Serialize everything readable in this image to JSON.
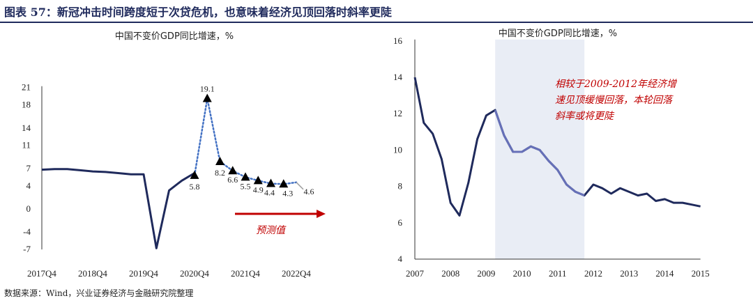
{
  "figure": {
    "title": "图表 57：新冠冲击时间跨度短于次贷危机，也意味着经济见顶回落时斜率更陡",
    "source": "数据来源：Wind，兴业证券经济与金融研究院整理"
  },
  "chart_data": [
    {
      "type": "line",
      "title": "中国不变价GDP同比增速，%",
      "x_tick_labels": [
        "2017Q4",
        "2018Q4",
        "2019Q4",
        "2020Q4",
        "2021Q4",
        "2022Q4"
      ],
      "y_tick_labels": [
        "21",
        "18",
        "14",
        "11",
        "7",
        "4",
        "0",
        "-4",
        "-7"
      ],
      "ylim": [
        -7,
        21
      ],
      "actual": {
        "x": [
          "2017Q4",
          "2018Q1",
          "2018Q2",
          "2018Q3",
          "2018Q4",
          "2019Q1",
          "2019Q2",
          "2019Q3",
          "2019Q4",
          "2020Q1",
          "2020Q2",
          "2020Q3",
          "2020Q4"
        ],
        "y": [
          6.8,
          6.9,
          6.9,
          6.7,
          6.5,
          6.4,
          6.2,
          6.0,
          6.0,
          -6.8,
          3.2,
          4.9,
          6.2
        ],
        "color": "#1f2a5c"
      },
      "forecast": {
        "x": [
          "2020Q4",
          "2021Q1",
          "2021Q2",
          "2021Q3",
          "2021Q4",
          "2022Q1",
          "2022Q2",
          "2022Q3",
          "2022Q4"
        ],
        "y": [
          5.8,
          19.1,
          8.2,
          6.6,
          5.5,
          4.9,
          4.4,
          4.3,
          4.6
        ],
        "labels": [
          "5.8",
          "19.1",
          "8.2",
          "6.6",
          "5.5",
          "4.9",
          "4.4",
          "4.3",
          "4.6"
        ],
        "color": "#4472c4"
      },
      "annotation": "预测值"
    },
    {
      "type": "line",
      "title": "中国不变价GDP同比增速，%",
      "x_tick_labels": [
        "2007",
        "2008",
        "2009",
        "2010",
        "2011",
        "2012",
        "2013",
        "2014",
        "2015"
      ],
      "y_tick_labels": [
        "16",
        "14",
        "12",
        "10",
        "8",
        "6",
        "4"
      ],
      "ylim": [
        4,
        16
      ],
      "xlim": [
        2007,
        2015
      ],
      "series": [
        {
          "x": [
            2007.0,
            2007.25,
            2007.5,
            2007.75,
            2008.0,
            2008.25,
            2008.5,
            2008.75,
            2009.0,
            2009.25,
            2009.5,
            2009.75,
            2010.0,
            2010.25,
            2010.5,
            2010.75,
            2011.0,
            2011.25,
            2011.5,
            2011.75,
            2012.0,
            2012.25,
            2012.5,
            2012.75,
            2013.0,
            2013.25,
            2013.5,
            2013.75,
            2014.0,
            2014.25,
            2014.5,
            2014.75,
            2015.0
          ],
          "y": [
            14.0,
            11.5,
            10.9,
            9.5,
            7.1,
            6.4,
            8.2,
            10.6,
            11.9,
            12.2,
            10.8,
            9.9,
            9.9,
            10.2,
            10.0,
            9.4,
            8.9,
            8.1,
            7.7,
            7.5,
            8.1,
            7.9,
            7.6,
            7.9,
            7.7,
            7.5,
            7.6,
            7.2,
            7.3,
            7.1,
            7.1,
            7.0,
            6.9
          ],
          "color": "#1f2a5c",
          "highlight_color": "#6670b8"
        }
      ],
      "shaded_period": {
        "from": 2009.25,
        "to": 2011.75,
        "color": "#e9edf5"
      },
      "annotation": "相较于2009-2012年经济增速见顶缓慢回落，本轮回落斜率或将更陡"
    }
  ]
}
